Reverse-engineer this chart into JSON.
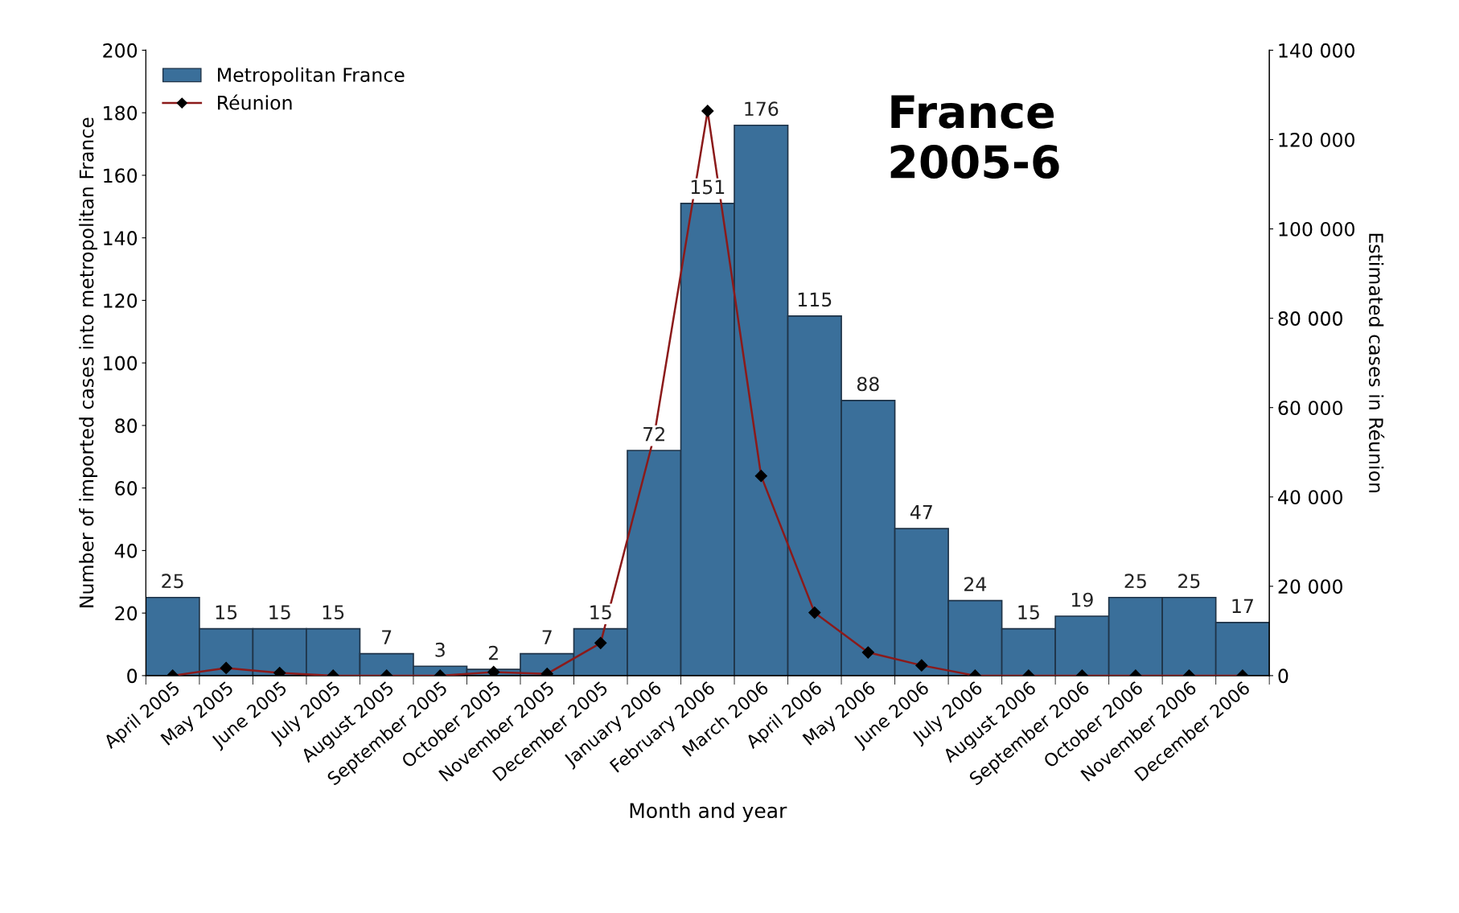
{
  "chart_data": {
    "type": "bar",
    "xlabel": "Month and year",
    "ylabel": "Number of imported cases into metropolitan France",
    "y2label": "Estimated cases in Réunion",
    "annotations": [
      "France\n2005-6"
    ],
    "categories": [
      "April 2005",
      "May 2005",
      "June 2005",
      "July 2005",
      "August 2005",
      "September 2005",
      "October 2005",
      "November 2005",
      "December 2005",
      "January 2006",
      "February 2006",
      "March 2006",
      "April 2006",
      "May 2006",
      "June 2006",
      "July 2006",
      "August 2006",
      "September 2006",
      "October 2006",
      "November 2006",
      "December 2006"
    ],
    "series": [
      {
        "name": "Metropolitan France",
        "color": "#3a6f9a",
        "values": [
          25,
          15,
          15,
          15,
          7,
          3,
          2,
          7,
          15,
          72,
          151,
          176,
          115,
          88,
          47,
          24,
          15,
          19,
          25,
          25,
          17
        ],
        "data_labels": true
      },
      {
        "name": "Réunion",
        "type": "line",
        "axis": "y2",
        "color": "#8b1a1a",
        "marker": "diamond",
        "values": [
          0,
          1700,
          600,
          0,
          0,
          0,
          800,
          400,
          7300,
          53600,
          126400,
          44700,
          14100,
          5200,
          2300,
          0,
          0,
          0,
          0,
          0,
          0
        ]
      }
    ],
    "ylim": [
      0,
      200
    ],
    "yticks": [
      0,
      20,
      40,
      60,
      80,
      100,
      120,
      140,
      160,
      180,
      200
    ],
    "y2lim": [
      0,
      140000
    ],
    "y2ticks": [
      0,
      {
        "value": 20000,
        "label": "20 000"
      },
      {
        "value": 40000,
        "label": "40 000"
      },
      {
        "value": 60000,
        "label": "60 000"
      },
      {
        "value": 80000,
        "label": "80 000"
      },
      {
        "value": 100000,
        "label": "100 000"
      },
      {
        "value": 120000,
        "label": "120 000"
      },
      {
        "value": 140000,
        "label": "140 000"
      }
    ],
    "legend": "top left",
    "grid": false
  }
}
